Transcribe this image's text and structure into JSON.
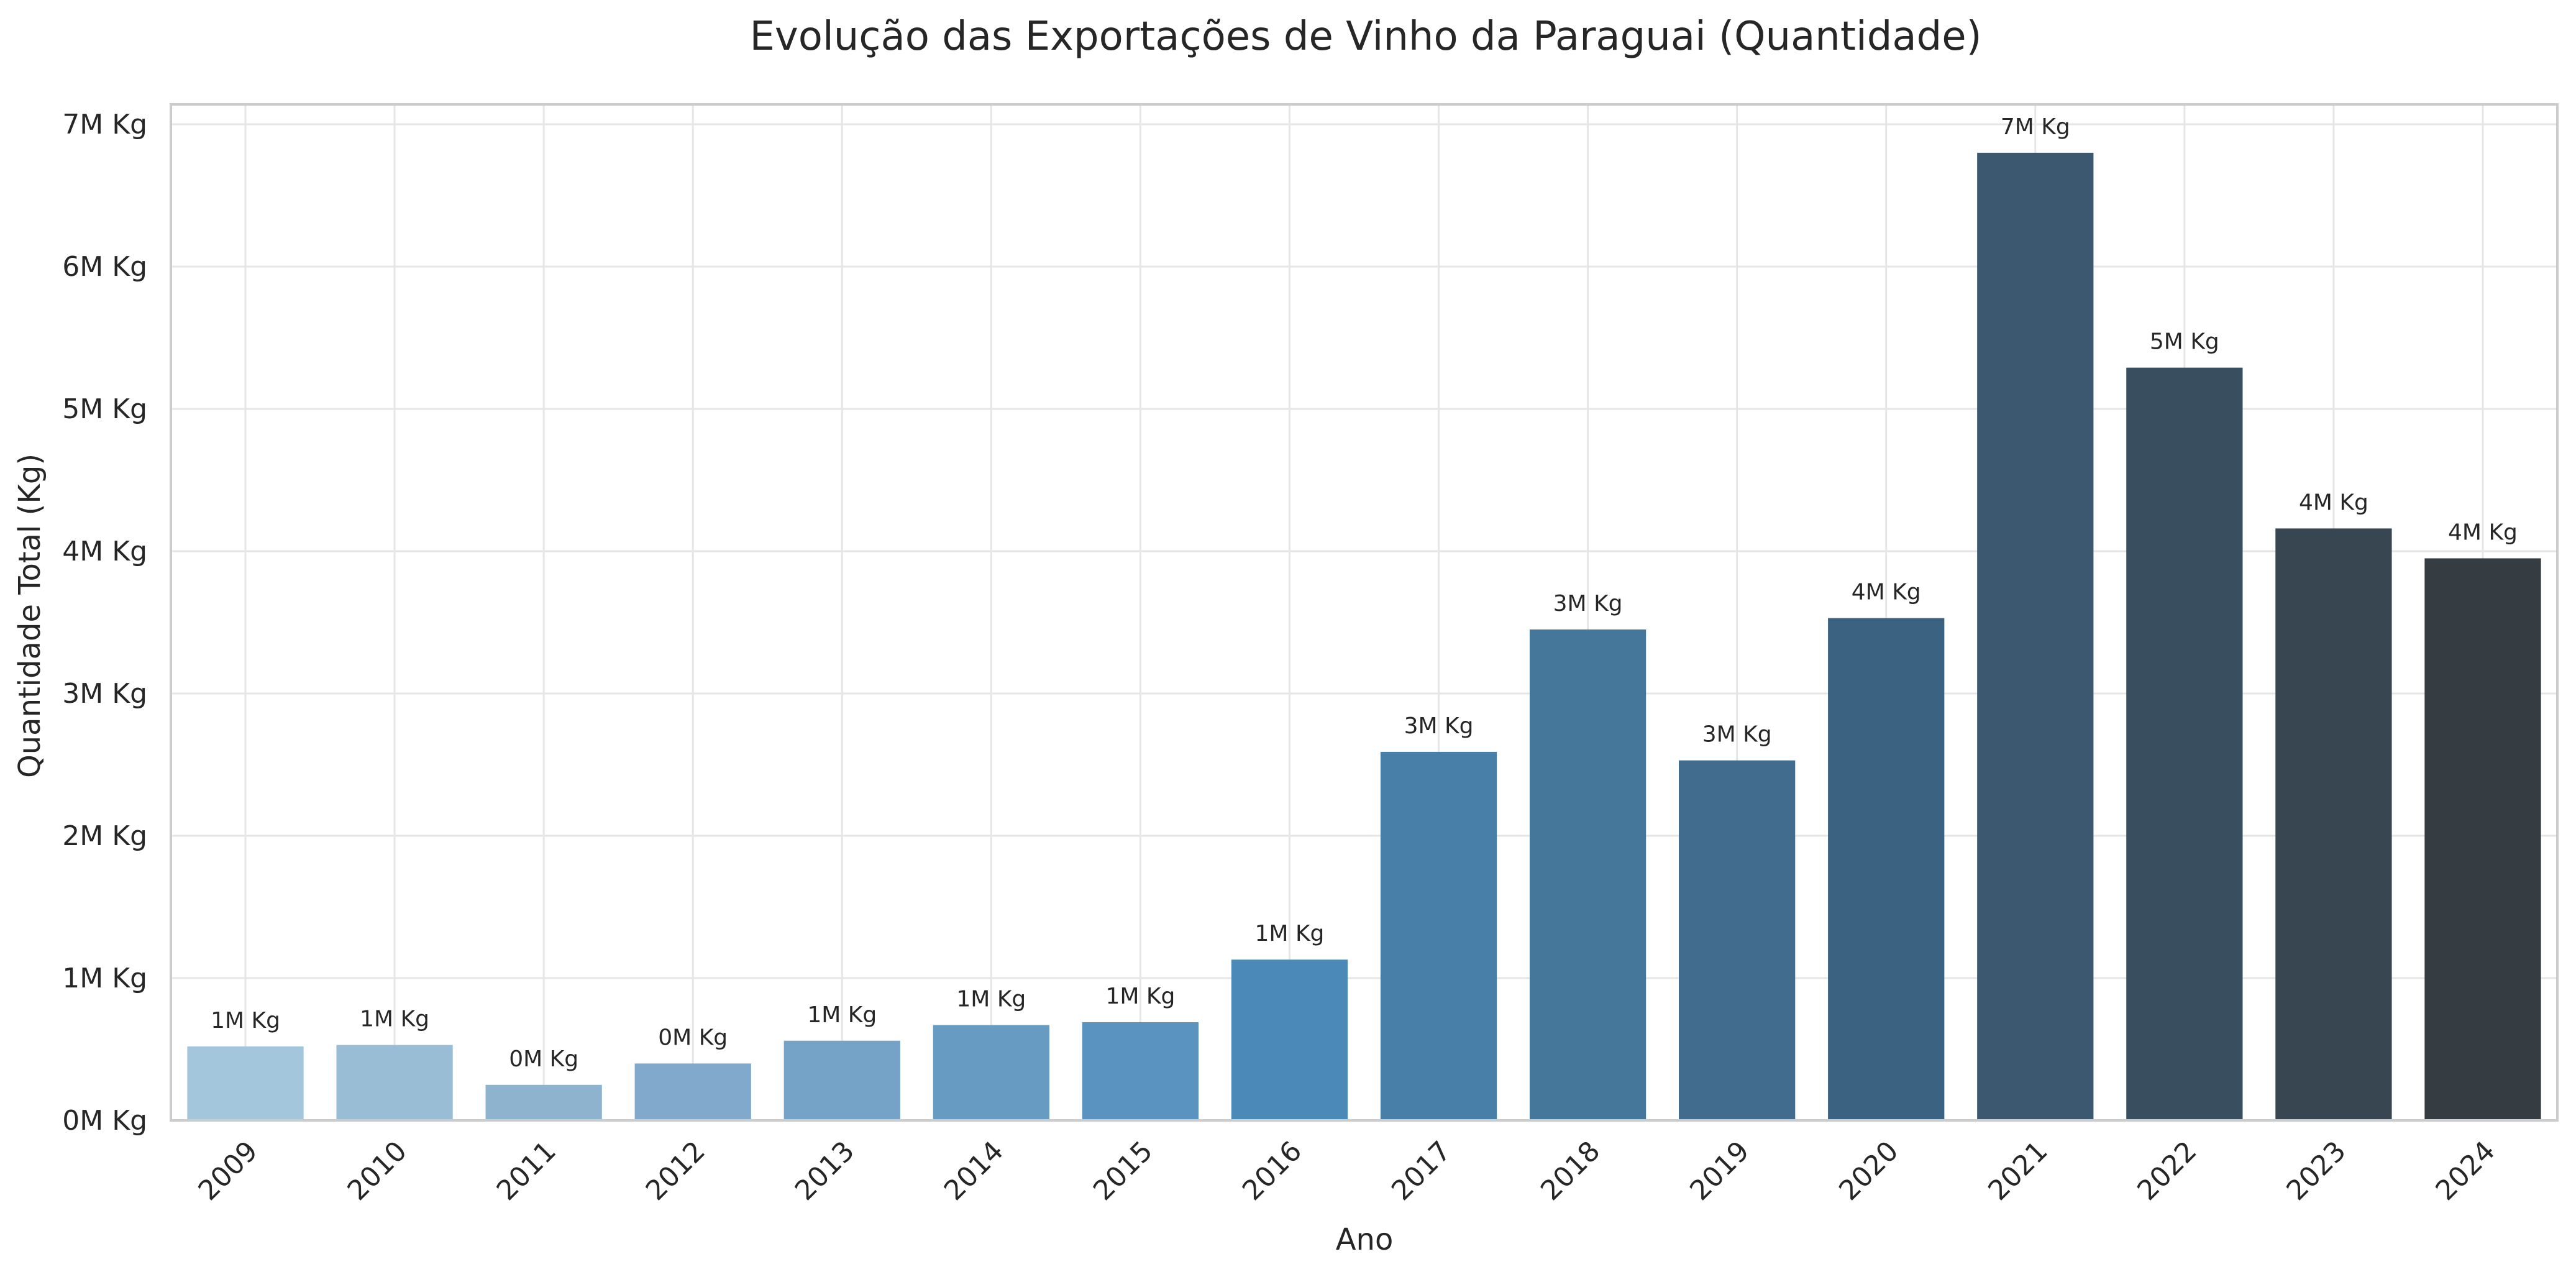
{
  "chart_data": {
    "type": "bar",
    "title": "Evolução das Exportações de Vinho da Paraguai (Quantidade)",
    "xlabel": "Ano",
    "ylabel": "Quantidade Total (Kg)",
    "categories": [
      "2009",
      "2010",
      "2011",
      "2012",
      "2013",
      "2014",
      "2015",
      "2016",
      "2017",
      "2018",
      "2019",
      "2020",
      "2021",
      "2022",
      "2023",
      "2024"
    ],
    "values": [
      520000,
      530000,
      250000,
      400000,
      560000,
      670000,
      690000,
      1130000,
      2590000,
      3450000,
      2530000,
      3530000,
      6800000,
      5290000,
      4160000,
      3950000
    ],
    "value_labels": [
      "1M Kg",
      "1M Kg",
      "0M Kg",
      "0M Kg",
      "1M Kg",
      "1M Kg",
      "1M Kg",
      "1M Kg",
      "3M Kg",
      "3M Kg",
      "3M Kg",
      "4M Kg",
      "7M Kg",
      "5M Kg",
      "4M Kg",
      "4M Kg"
    ],
    "y_ticks": [
      0,
      1000000,
      2000000,
      3000000,
      4000000,
      5000000,
      6000000,
      7000000
    ],
    "y_tick_labels": [
      "0M Kg",
      "1M Kg",
      "2M Kg",
      "3M Kg",
      "4M Kg",
      "5M Kg",
      "6M Kg",
      "7M Kg"
    ],
    "ylim": [
      0,
      7140000
    ],
    "grid": true,
    "colors": [
      "#a3c6dc",
      "#99bdd5",
      "#8db3cf",
      "#80a9cb",
      "#74a3c7",
      "#679bc1",
      "#5a93bf",
      "#4b8ab8",
      "#487fa9",
      "#45779b",
      "#416c8d",
      "#3c6281",
      "#3c5870",
      "#394f60",
      "#374651",
      "#353c42"
    ]
  }
}
